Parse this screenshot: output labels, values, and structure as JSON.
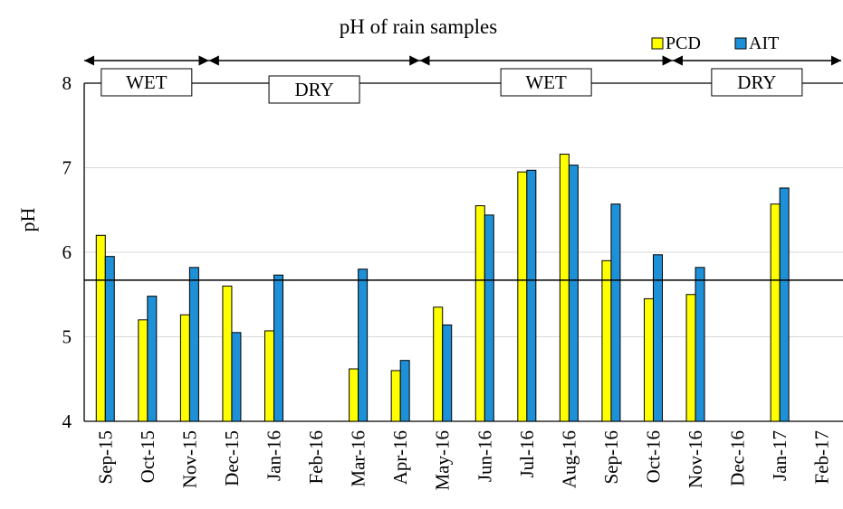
{
  "chart_data": {
    "type": "bar",
    "title": "pH of rain samples",
    "xlabel": "",
    "ylabel": "pH",
    "ylim": [
      4,
      8
    ],
    "yticks": [
      4,
      5,
      6,
      7,
      8
    ],
    "grid": true,
    "legend_position": "top-right",
    "categories": [
      "Sep-15",
      "Oct-15",
      "Nov-15",
      "Dec-15",
      "Jan-16",
      "Feb-16",
      "Mar-16",
      "Apr-16",
      "May-16",
      "Jun-16",
      "Jul-16",
      "Aug-16",
      "Sep-16",
      "Oct-16",
      "Nov-16",
      "Dec-16",
      "Jan-17",
      "Feb-17"
    ],
    "series": [
      {
        "name": "PCD",
        "color": "#ffff00",
        "values": [
          6.2,
          5.2,
          5.26,
          5.6,
          5.07,
          null,
          4.62,
          4.6,
          5.35,
          6.55,
          6.95,
          7.16,
          5.9,
          5.45,
          5.5,
          null,
          6.57,
          null
        ]
      },
      {
        "name": "AIT",
        "color": "#1e90d8",
        "values": [
          5.95,
          5.48,
          5.82,
          5.05,
          5.73,
          null,
          5.8,
          4.72,
          5.14,
          6.44,
          6.97,
          7.03,
          6.57,
          5.97,
          5.82,
          null,
          6.76,
          null
        ]
      }
    ],
    "reference_line": 5.67,
    "seasons": [
      {
        "label": "WET",
        "from": "Sep-15",
        "to": "Nov-15"
      },
      {
        "label": "DRY",
        "from": "Dec-15",
        "to": "Apr-16"
      },
      {
        "label": "WET",
        "from": "May-16",
        "to": "Oct-16"
      },
      {
        "label": "DRY",
        "from": "Nov-16",
        "to": "Feb-17"
      }
    ]
  }
}
